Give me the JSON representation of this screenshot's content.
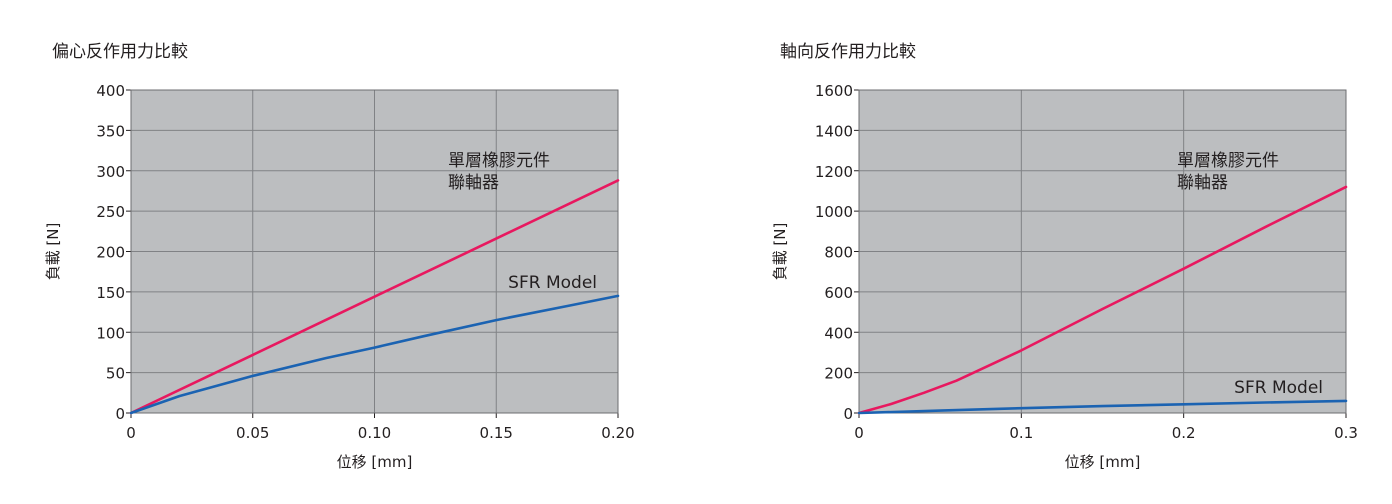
{
  "chart_data": [
    {
      "type": "line",
      "title": "偏心反作用力比較",
      "xlabel": "位移 [mm]",
      "ylabel": "負載 [N]",
      "xlim": [
        0,
        0.2
      ],
      "ylim": [
        0,
        400
      ],
      "xticks": [
        "0",
        "0.05",
        "0.10",
        "0.15",
        "0.20"
      ],
      "yticks": [
        "0",
        "50",
        "100",
        "150",
        "200",
        "250",
        "300",
        "350",
        "400"
      ],
      "grid": true,
      "background": "#bcbec0",
      "series": [
        {
          "name": "單層橡膠元件 聯軸器",
          "label_lines": [
            "單層橡膠元件",
            "聯軸器"
          ],
          "color": "#e8185f",
          "x": [
            0,
            0.05,
            0.1,
            0.15,
            0.2
          ],
          "y": [
            0,
            72,
            144,
            216,
            288
          ]
        },
        {
          "name": "SFR Model",
          "label_lines": [
            "SFR Model"
          ],
          "color": "#1b63b2",
          "x": [
            0,
            0.02,
            0.05,
            0.08,
            0.1,
            0.12,
            0.15,
            0.18,
            0.2
          ],
          "y": [
            0,
            21,
            46,
            68,
            81,
            95,
            115,
            133,
            145
          ]
        }
      ]
    },
    {
      "type": "line",
      "title": "軸向反作用力比較",
      "xlabel": "位移 [mm]",
      "ylabel": "負載 [N]",
      "xlim": [
        0,
        0.3
      ],
      "ylim": [
        0,
        1600
      ],
      "xticks": [
        "0",
        "0.1",
        "0.2",
        "0.3"
      ],
      "yticks": [
        "0",
        "200",
        "400",
        "600",
        "800",
        "1000",
        "1200",
        "1400",
        "1600"
      ],
      "grid": true,
      "background": "#bcbec0",
      "series": [
        {
          "name": "單層橡膠元件 聯軸器",
          "label_lines": [
            "單層橡膠元件",
            "聯軸器"
          ],
          "color": "#e8185f",
          "x": [
            0,
            0.02,
            0.04,
            0.06,
            0.08,
            0.1,
            0.15,
            0.2,
            0.25,
            0.3
          ],
          "y": [
            0,
            45,
            100,
            160,
            235,
            310,
            515,
            715,
            920,
            1120
          ]
        },
        {
          "name": "SFR Model",
          "label_lines": [
            "SFR Model"
          ],
          "color": "#1b63b2",
          "x": [
            0,
            0.05,
            0.1,
            0.15,
            0.2,
            0.25,
            0.3
          ],
          "y": [
            0,
            12,
            24,
            34,
            43,
            52,
            60
          ]
        }
      ]
    }
  ]
}
